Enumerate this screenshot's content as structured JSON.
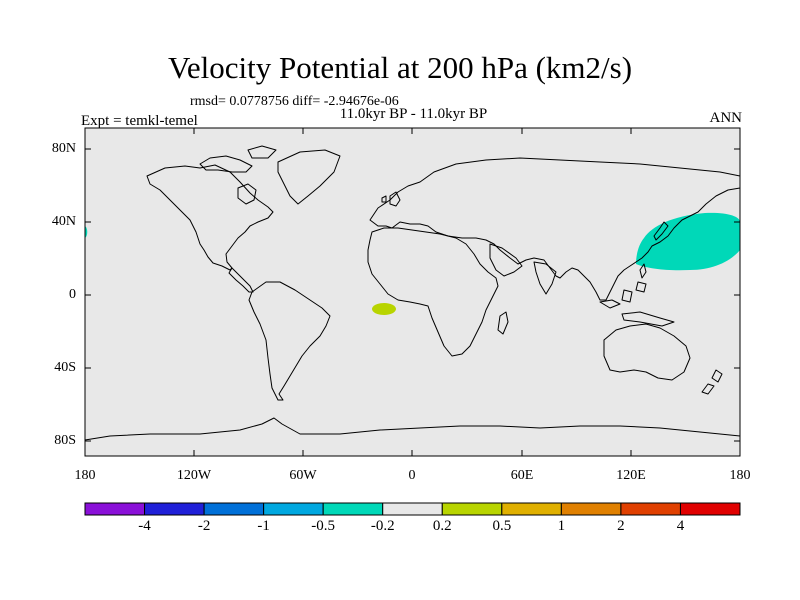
{
  "header": {
    "title": "Velocity Potential at 200 hPa (km2/s)",
    "stats": "rmsd= 0.0778756 diff= -2.94676e-06",
    "subtitle": "11.0kyr BP - 11.0kyr BP",
    "left_label": "Expt = temkl-temel",
    "right_label": "ANN"
  },
  "map": {
    "background_color": "#e8e8e8",
    "lat_labels": [
      "80N",
      "40N",
      "0",
      "40S",
      "80S"
    ],
    "lon_labels": [
      "180",
      "120W",
      "60W",
      "0",
      "60E",
      "120E",
      "180"
    ],
    "anomalies": [
      {
        "name": "north-pacific-negative",
        "category": "-0.5 to -0.2",
        "color": "#00d8b8"
      },
      {
        "name": "tropical-atlantic-positive",
        "category": "0.2 to 0.5",
        "color": "#b8d400"
      }
    ]
  },
  "colorbar": {
    "colors": [
      "#8a10d8",
      "#2020d8",
      "#0070d8",
      "#00a8e0",
      "#00d8b8",
      "#e8e8e8",
      "#b8d400",
      "#e0b000",
      "#e08000",
      "#e04000",
      "#e00000"
    ],
    "labels": [
      "-4",
      "-2",
      "-1",
      "-0.5",
      "-0.2",
      "0.2",
      "0.5",
      "1",
      "2",
      "4"
    ]
  }
}
